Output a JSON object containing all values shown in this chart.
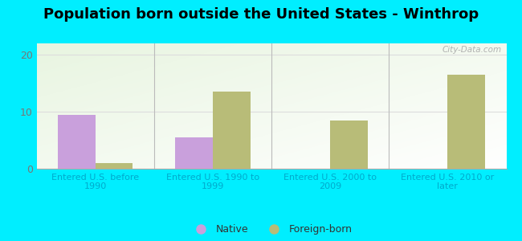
{
  "title": "Population born outside the United States - Winthrop",
  "categories": [
    "Entered U.S. before\n1990",
    "Entered U.S. 1990 to\n1999",
    "Entered U.S. 2000 to\n2009",
    "Entered U.S. 2010 or\nlater"
  ],
  "native_values": [
    9.5,
    5.5,
    0,
    0
  ],
  "foreign_values": [
    1.0,
    13.5,
    8.5,
    16.5
  ],
  "native_color": "#c9a0dc",
  "foreign_color": "#b8bc78",
  "bar_width": 0.32,
  "ylim": [
    0,
    22
  ],
  "yticks": [
    0,
    10,
    20
  ],
  "background_outer": "#00eeff",
  "tick_label_color": "#00aacc",
  "tick_label_fontsize": 8.0,
  "title_fontsize": 13,
  "legend_native": "Native",
  "legend_foreign": "Foreign-born",
  "watermark": "City-Data.com",
  "grid_color": "#dddddd",
  "separator_color": "#bbbbbb"
}
